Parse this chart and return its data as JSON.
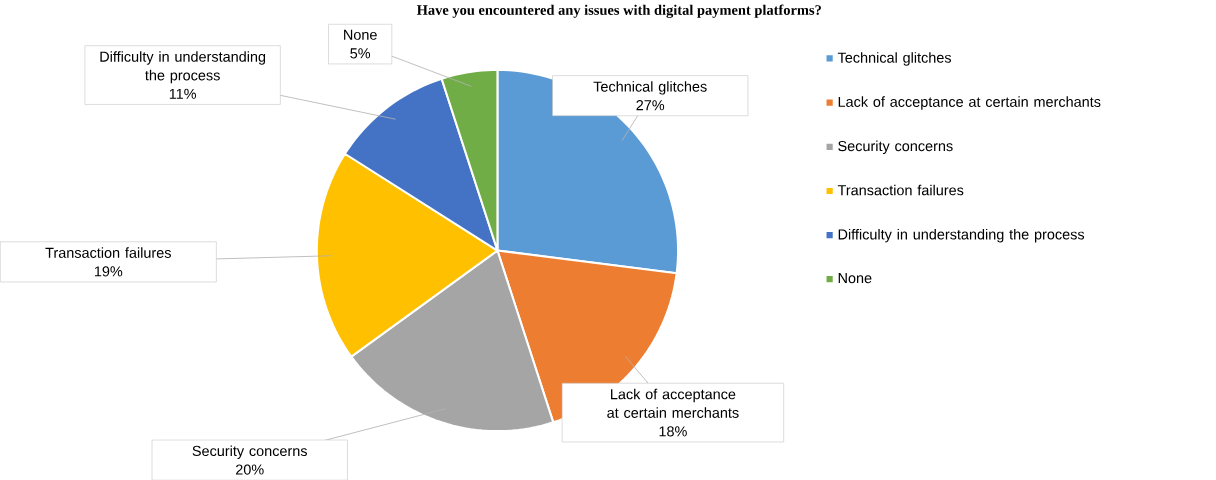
{
  "chart_data": {
    "type": "pie",
    "title": "Have you encountered any issues with digital payment platforms?",
    "categories": [
      "Technical glitches",
      "Lack of acceptance at certain merchants",
      "Security concerns",
      "Transaction failures",
      "Difficulty in understanding the process",
      "None"
    ],
    "values": [
      27,
      18,
      20,
      19,
      11,
      5
    ],
    "value_labels": [
      "27%",
      "18%",
      "20%",
      "19%",
      "11%",
      "5%"
    ],
    "colors": [
      "#5b9bd5",
      "#ed7d31",
      "#a5a5a5",
      "#ffc000",
      "#4472c4",
      "#70ad47"
    ],
    "legend": "right"
  }
}
